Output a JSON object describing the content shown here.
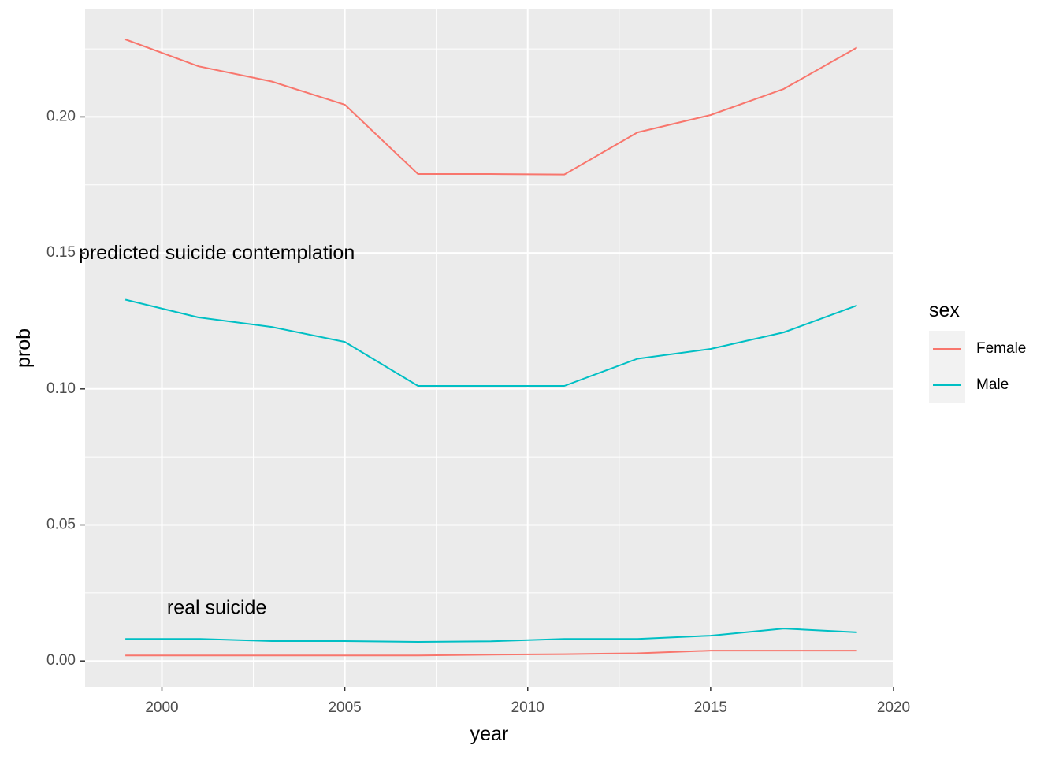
{
  "chart_data": {
    "type": "line",
    "xlabel": "year",
    "ylabel": "prob",
    "xlim": [
      1997.9,
      2020
    ],
    "ylim": [
      -0.0095,
      0.2395
    ],
    "x_ticks": [
      2000,
      2005,
      2010,
      2015,
      2020
    ],
    "x_tick_labels": [
      "2000",
      "2005",
      "2010",
      "2015",
      "2020"
    ],
    "y_ticks": [
      0.0,
      0.05,
      0.1,
      0.15,
      0.2
    ],
    "y_tick_labels": [
      "0.00",
      "0.05",
      "0.10",
      "0.15",
      "0.20"
    ],
    "grid": true,
    "legend": {
      "title": "sex",
      "placement": "right",
      "entries": [
        {
          "label": "Female",
          "color": "#F8766D"
        },
        {
          "label": "Male",
          "color": "#00BFC4"
        }
      ]
    },
    "annotations": [
      {
        "text": "predicted suicide contemplation",
        "x": 2001.5,
        "y": 0.1497
      },
      {
        "text": "real suicide",
        "x": 2001.5,
        "y": 0.0192
      }
    ],
    "series": [
      {
        "name": "Female",
        "group": "predicted suicide contemplation",
        "color": "#F8766D",
        "x": [
          1999,
          2001,
          2003,
          2005,
          2007,
          2009,
          2011,
          2013,
          2015,
          2017,
          2019
        ],
        "y": [
          0.2285,
          0.2186,
          0.213,
          0.2045,
          0.179,
          0.179,
          0.1788,
          0.1943,
          0.2007,
          0.2103,
          0.2255
        ]
      },
      {
        "name": "Male",
        "group": "predicted suicide contemplation",
        "color": "#00BFC4",
        "x": [
          1999,
          2001,
          2003,
          2005,
          2007,
          2009,
          2011,
          2013,
          2015,
          2017,
          2019
        ],
        "y": [
          0.1328,
          0.1263,
          0.1228,
          0.1173,
          0.1011,
          0.1011,
          0.1011,
          0.1111,
          0.1147,
          0.1208,
          0.1307
        ]
      },
      {
        "name": "Male",
        "group": "real suicide",
        "color": "#00BFC4",
        "x": [
          1999,
          2001,
          2003,
          2005,
          2007,
          2009,
          2011,
          2013,
          2015,
          2017,
          2019
        ],
        "y": [
          0.0081,
          0.0081,
          0.0073,
          0.0073,
          0.007,
          0.0072,
          0.0081,
          0.0081,
          0.0093,
          0.0119,
          0.0105
        ]
      },
      {
        "name": "Female",
        "group": "real suicide",
        "color": "#F8766D",
        "x": [
          1999,
          2001,
          2003,
          2005,
          2007,
          2009,
          2011,
          2013,
          2015,
          2017,
          2019
        ],
        "y": [
          0.002,
          0.002,
          0.002,
          0.002,
          0.002,
          0.0023,
          0.0025,
          0.0028,
          0.0038,
          0.0038,
          0.0038
        ]
      }
    ]
  }
}
